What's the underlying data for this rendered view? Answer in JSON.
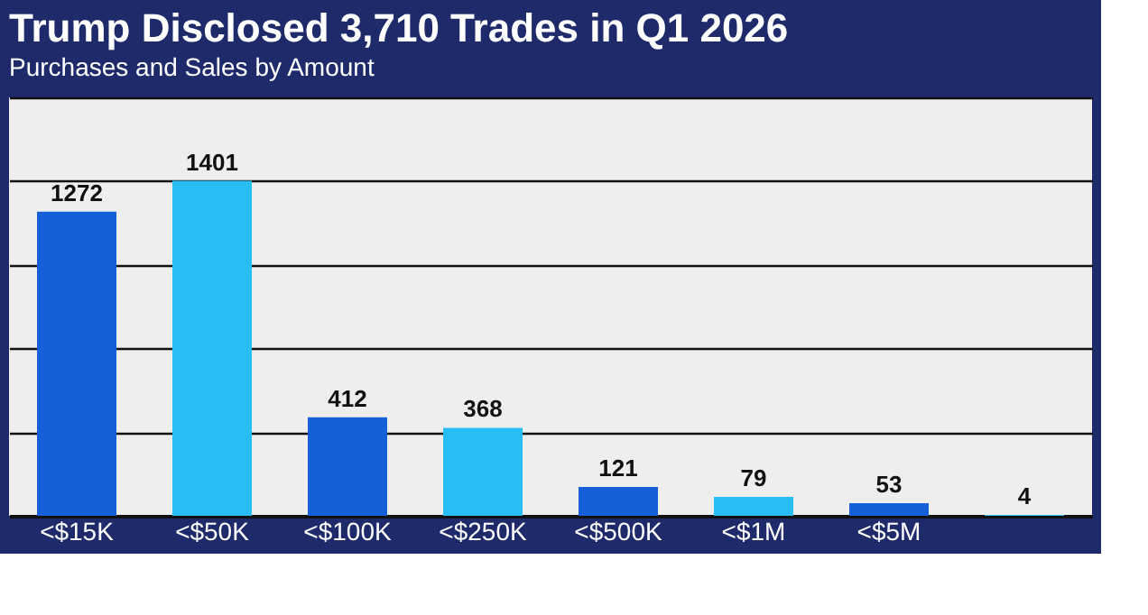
{
  "chart_data": {
    "type": "bar",
    "title": "Trump Disclosed 3,710 Trades in Q1 2026",
    "subtitle": "Purchases and Sales by Amount",
    "categories": [
      "<$15K",
      "<$50K",
      "<$100K",
      "<$250K",
      "<$500K",
      "<$1M",
      "<$5M",
      null
    ],
    "values": [
      1272,
      1401,
      412,
      368,
      121,
      79,
      53,
      4
    ],
    "colors": [
      "#1560d8",
      "#29bdf5",
      "#1560d8",
      "#29bdf5",
      "#1560d8",
      "#29bdf5",
      "#1560d8",
      "#29bdf5"
    ],
    "ylim": [
      0,
      1750
    ],
    "yticks": [
      {
        "value": 0,
        "label": null
      },
      {
        "value": 350,
        "label": null
      },
      {
        "value": 700,
        "label": null
      },
      {
        "value": 1050,
        "label": null
      },
      {
        "value": 1400,
        "label": null
      },
      {
        "value": 1750,
        "label": null
      }
    ],
    "tick_labels": "x",
    "grid": "y",
    "data_labels": true
  }
}
